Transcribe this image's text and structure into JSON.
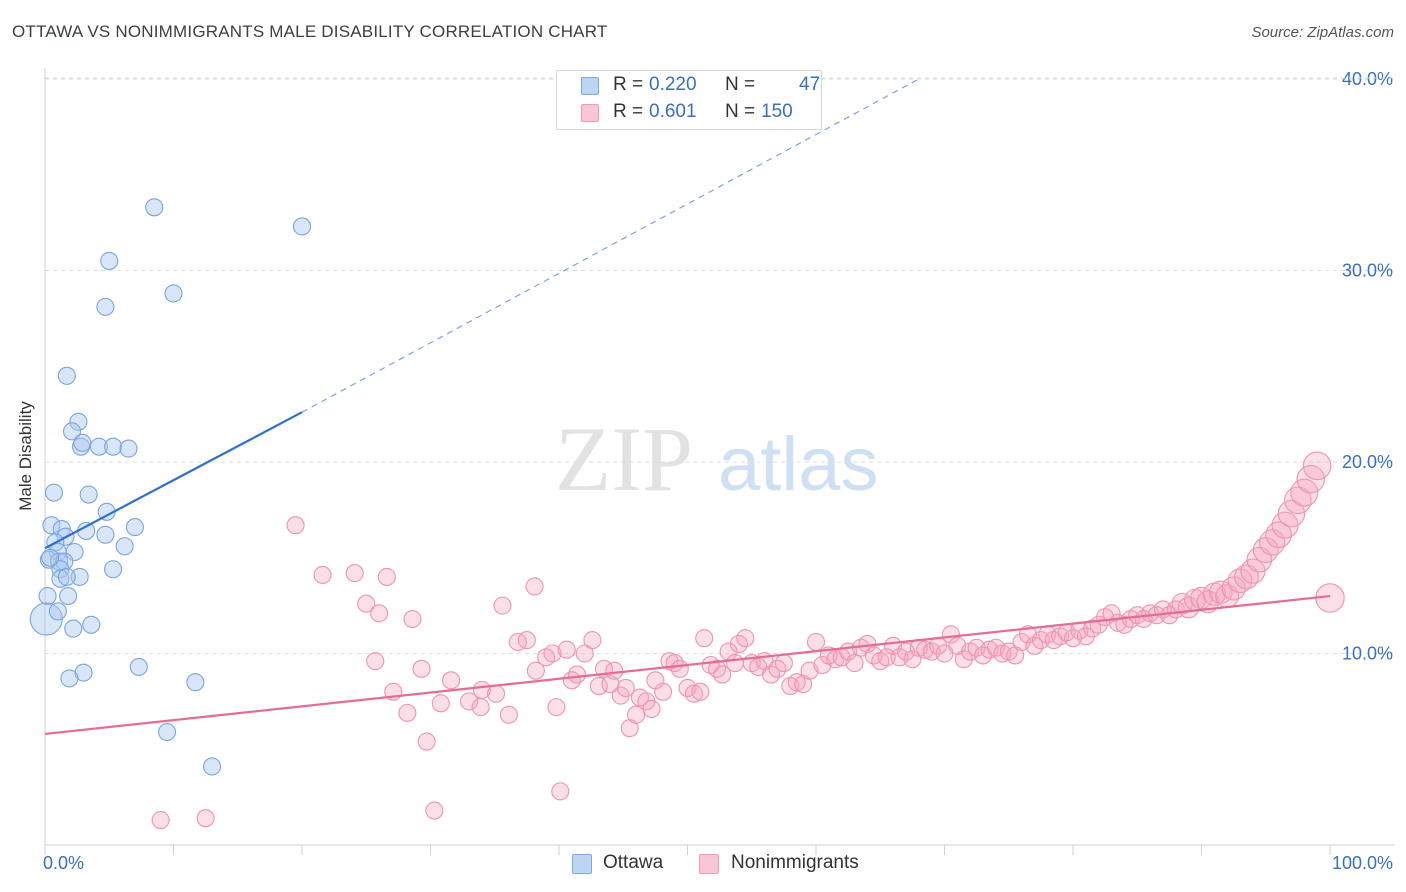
{
  "title": "OTTAWA VS NONIMMIGRANTS MALE DISABILITY CORRELATION CHART",
  "source": "Source: ZipAtlas.com",
  "watermark": {
    "zip": "ZIP",
    "atlas": "atlas"
  },
  "legend_top": {
    "rows": [
      {
        "r_label": "R =",
        "r_value": "0.220",
        "n_label": "N =",
        "n_value": "47"
      },
      {
        "r_label": "R =",
        "r_value": "0.601",
        "n_label": "N =",
        "n_value": "150"
      }
    ]
  },
  "legend_bottom": {
    "items": [
      "Ottawa",
      "Nonimmigrants"
    ]
  },
  "chart_data": {
    "type": "scatter",
    "title": "OTTAWA VS NONIMMIGRANTS MALE DISABILITY CORRELATION CHART",
    "xlabel": "",
    "ylabel": "Male Disability",
    "xlim": [
      0,
      100
    ],
    "ylim": [
      0,
      42
    ],
    "x_tick_labels": [
      "0.0%",
      "100.0%"
    ],
    "y_ticks": [
      10,
      20,
      30,
      40
    ],
    "y_tick_labels": [
      "10.0%",
      "20.0%",
      "30.0%",
      "40.0%"
    ],
    "grid": "horizontal dashed",
    "legend_placement": "bottom-center",
    "colors": {
      "Ottawa": "#5b8fd9",
      "Nonimmigrants": "#ec6f9b",
      "accent_text": "#3a6fc4"
    },
    "series": [
      {
        "name": "Ottawa",
        "r": 0.22,
        "n": 47,
        "trend": {
          "x": [
            0,
            20
          ],
          "y": [
            15.5,
            22.6
          ],
          "dashed_extension_to": [
            68,
            40.0
          ]
        },
        "points": [
          [
            8.5,
            33.3
          ],
          [
            20.0,
            32.3
          ],
          [
            5.0,
            30.5
          ],
          [
            10.0,
            28.8
          ],
          [
            4.7,
            28.1
          ],
          [
            1.7,
            24.5
          ],
          [
            2.6,
            22.1
          ],
          [
            2.1,
            21.6
          ],
          [
            2.8,
            20.8
          ],
          [
            2.9,
            21.0
          ],
          [
            4.2,
            20.8
          ],
          [
            5.3,
            20.8
          ],
          [
            6.5,
            20.7
          ],
          [
            0.7,
            18.4
          ],
          [
            3.4,
            18.3
          ],
          [
            4.8,
            17.4
          ],
          [
            0.5,
            16.7
          ],
          [
            1.3,
            16.5
          ],
          [
            3.2,
            16.4
          ],
          [
            4.7,
            16.2
          ],
          [
            7.0,
            16.6
          ],
          [
            1.6,
            16.1
          ],
          [
            0.8,
            15.8
          ],
          [
            6.2,
            15.6
          ],
          [
            1.0,
            15.3
          ],
          [
            2.3,
            15.3
          ],
          [
            0.3,
            14.9
          ],
          [
            1.1,
            14.8
          ],
          [
            1.5,
            14.8
          ],
          [
            1.2,
            14.4
          ],
          [
            5.3,
            14.4
          ],
          [
            2.7,
            14.0
          ],
          [
            1.2,
            13.9
          ],
          [
            1.7,
            14.0
          ],
          [
            0.2,
            13.0
          ],
          [
            1.8,
            13.0
          ],
          [
            0.1,
            11.8
          ],
          [
            3.6,
            11.5
          ],
          [
            2.2,
            11.3
          ],
          [
            7.3,
            9.3
          ],
          [
            3.0,
            9.0
          ],
          [
            1.9,
            8.7
          ],
          [
            11.7,
            8.5
          ],
          [
            9.5,
            5.9
          ],
          [
            13.0,
            4.1
          ],
          [
            0.4,
            15.0
          ],
          [
            1.0,
            12.2
          ]
        ],
        "sizes": [
          1,
          1,
          1,
          1,
          1,
          1,
          1,
          1,
          1,
          1,
          1,
          1,
          1,
          1,
          1,
          1,
          1,
          1,
          1,
          1,
          1,
          1,
          1,
          1,
          1,
          1,
          1,
          1,
          1,
          1,
          1,
          1,
          1,
          1,
          1,
          1,
          2,
          1,
          1,
          1,
          1,
          1,
          1,
          1,
          1,
          1,
          1
        ]
      },
      {
        "name": "Nonimmigrants",
        "r": 0.601,
        "n": 150,
        "trend": {
          "x": [
            0,
            100
          ],
          "y": [
            5.8,
            13.0
          ]
        },
        "points": [
          [
            9.0,
            1.3
          ],
          [
            12.5,
            1.4
          ],
          [
            19.5,
            16.7
          ],
          [
            21.6,
            14.1
          ],
          [
            24.1,
            14.2
          ],
          [
            26.6,
            14.0
          ],
          [
            25.0,
            12.6
          ],
          [
            26.0,
            12.1
          ],
          [
            28.6,
            11.8
          ],
          [
            38.1,
            13.5
          ],
          [
            35.6,
            12.5
          ],
          [
            25.7,
            9.6
          ],
          [
            27.1,
            8.0
          ],
          [
            28.2,
            6.9
          ],
          [
            29.3,
            9.2
          ],
          [
            29.7,
            5.4
          ],
          [
            30.3,
            1.8
          ],
          [
            30.8,
            7.4
          ],
          [
            31.6,
            8.6
          ],
          [
            33.0,
            7.5
          ],
          [
            33.9,
            7.2
          ],
          [
            34.0,
            8.1
          ],
          [
            35.1,
            7.9
          ],
          [
            36.1,
            6.8
          ],
          [
            36.8,
            10.6
          ],
          [
            37.5,
            10.7
          ],
          [
            38.2,
            9.1
          ],
          [
            39.0,
            9.8
          ],
          [
            39.5,
            10.0
          ],
          [
            39.8,
            7.2
          ],
          [
            40.1,
            2.8
          ],
          [
            40.6,
            10.2
          ],
          [
            41.0,
            8.6
          ],
          [
            41.4,
            8.9
          ],
          [
            42.0,
            10.0
          ],
          [
            42.6,
            10.7
          ],
          [
            43.1,
            8.3
          ],
          [
            43.5,
            9.2
          ],
          [
            44.0,
            8.4
          ],
          [
            44.3,
            9.1
          ],
          [
            44.8,
            7.8
          ],
          [
            45.2,
            8.2
          ],
          [
            45.5,
            6.1
          ],
          [
            46.0,
            6.8
          ],
          [
            46.3,
            7.7
          ],
          [
            46.8,
            7.5
          ],
          [
            47.2,
            7.1
          ],
          [
            47.5,
            8.6
          ],
          [
            48.1,
            8.0
          ],
          [
            48.6,
            9.6
          ],
          [
            49.0,
            9.5
          ],
          [
            49.4,
            9.2
          ],
          [
            50.0,
            8.2
          ],
          [
            50.5,
            7.9
          ],
          [
            51.0,
            8.0
          ],
          [
            51.3,
            10.8
          ],
          [
            51.8,
            9.4
          ],
          [
            52.3,
            9.2
          ],
          [
            52.7,
            8.9
          ],
          [
            53.2,
            10.1
          ],
          [
            53.7,
            9.5
          ],
          [
            54.0,
            10.5
          ],
          [
            54.5,
            10.8
          ],
          [
            55.0,
            9.5
          ],
          [
            55.5,
            9.3
          ],
          [
            56.0,
            9.6
          ],
          [
            56.5,
            8.9
          ],
          [
            57.0,
            9.2
          ],
          [
            57.5,
            9.5
          ],
          [
            58.0,
            8.3
          ],
          [
            58.5,
            8.5
          ],
          [
            59.0,
            8.4
          ],
          [
            59.5,
            9.1
          ],
          [
            60.0,
            10.6
          ],
          [
            60.5,
            9.4
          ],
          [
            61.0,
            9.9
          ],
          [
            61.5,
            9.7
          ],
          [
            62.0,
            9.8
          ],
          [
            62.5,
            10.1
          ],
          [
            63.0,
            9.5
          ],
          [
            63.5,
            10.3
          ],
          [
            64.0,
            10.5
          ],
          [
            64.5,
            9.9
          ],
          [
            65.0,
            9.6
          ],
          [
            65.5,
            9.8
          ],
          [
            66.0,
            10.4
          ],
          [
            66.5,
            9.8
          ],
          [
            67.0,
            10.1
          ],
          [
            67.5,
            9.7
          ],
          [
            68.0,
            10.3
          ],
          [
            68.5,
            10.2
          ],
          [
            69.0,
            10.1
          ],
          [
            69.5,
            10.4
          ],
          [
            70.0,
            10.0
          ],
          [
            70.5,
            11.0
          ],
          [
            71.0,
            10.4
          ],
          [
            71.5,
            9.7
          ],
          [
            72.0,
            10.1
          ],
          [
            72.5,
            10.3
          ],
          [
            73.0,
            9.9
          ],
          [
            73.5,
            10.2
          ],
          [
            74.0,
            10.3
          ],
          [
            74.5,
            10.0
          ],
          [
            75.0,
            10.1
          ],
          [
            75.5,
            9.9
          ],
          [
            76.0,
            10.6
          ],
          [
            76.5,
            11.0
          ],
          [
            77.0,
            10.4
          ],
          [
            77.5,
            10.7
          ],
          [
            78.0,
            11.0
          ],
          [
            78.5,
            10.7
          ],
          [
            79.0,
            10.9
          ],
          [
            79.5,
            11.1
          ],
          [
            80.0,
            10.8
          ],
          [
            80.5,
            11.2
          ],
          [
            81.0,
            10.9
          ],
          [
            81.5,
            11.3
          ],
          [
            82.0,
            11.5
          ],
          [
            82.5,
            11.9
          ],
          [
            83.0,
            12.1
          ],
          [
            83.5,
            11.6
          ],
          [
            84.0,
            11.5
          ],
          [
            84.5,
            11.8
          ],
          [
            85.0,
            12.0
          ],
          [
            85.5,
            11.8
          ],
          [
            86.0,
            12.1
          ],
          [
            86.5,
            12.0
          ],
          [
            87.0,
            12.3
          ],
          [
            87.5,
            12.0
          ],
          [
            88.0,
            12.3
          ],
          [
            88.5,
            12.6
          ],
          [
            89.0,
            12.4
          ],
          [
            89.5,
            12.8
          ],
          [
            90.0,
            12.9
          ],
          [
            90.5,
            12.7
          ],
          [
            91.0,
            13.1
          ],
          [
            91.5,
            13.2
          ],
          [
            92.0,
            13.0
          ],
          [
            92.5,
            13.4
          ],
          [
            93.0,
            13.8
          ],
          [
            93.5,
            14.0
          ],
          [
            94.0,
            14.3
          ],
          [
            94.5,
            14.9
          ],
          [
            95.0,
            15.4
          ],
          [
            95.5,
            15.8
          ],
          [
            96.0,
            16.2
          ],
          [
            96.5,
            16.7
          ],
          [
            97.0,
            17.3
          ],
          [
            97.5,
            18.0
          ],
          [
            98.0,
            18.4
          ],
          [
            98.5,
            19.1
          ],
          [
            99.0,
            19.8
          ],
          [
            100.0,
            12.9
          ]
        ]
      }
    ]
  }
}
